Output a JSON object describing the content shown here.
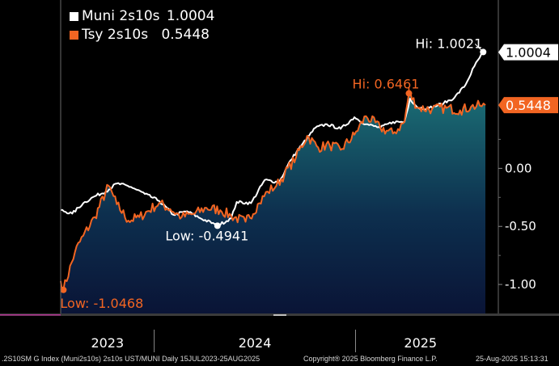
{
  "chart_data": {
    "type": "area",
    "legend": [
      {
        "name": "Muni 2s10s",
        "value": "1.0004",
        "color": "#ffffff"
      },
      {
        "name": "Tsy 2s10s",
        "value": "0.5448",
        "color": "#f26522"
      }
    ],
    "x_labels": [
      "2023",
      "2024",
      "2025"
    ],
    "y_ticks": [
      "0.00",
      "-0.50",
      "-1.00"
    ],
    "y_range": [
      -1.25,
      1.45
    ],
    "x_range": [
      "2023-07-15",
      "2025-08-25"
    ],
    "last_value_tags": [
      {
        "label": "1.0004",
        "series": "Muni 2s10s"
      },
      {
        "label": "0.5448",
        "series": "Tsy 2s10s"
      }
    ],
    "annotations": [
      {
        "text": "Hi: 1.0021",
        "date": "2025-08-21",
        "value": 1.0021,
        "series": "Muni 2s10s"
      },
      {
        "text": "Hi: 0.6461",
        "date": "2025-04-08",
        "value": 0.6461,
        "series": "Tsy 2s10s"
      },
      {
        "text": "Low: -0.4941",
        "date": "2024-04-25",
        "value": -0.4941,
        "series": "Muni 2s10s"
      },
      {
        "text": "Low: -1.0468",
        "date": "2023-07-20",
        "value": -1.0468,
        "series": "Tsy 2s10s"
      }
    ],
    "series": [
      {
        "name": "Muni 2s10s",
        "color": "#ffffff",
        "points": [
          [
            "2023-07-15",
            -0.36
          ],
          [
            "2023-08-05",
            -0.39
          ],
          [
            "2023-08-25",
            -0.3
          ],
          [
            "2023-09-15",
            -0.24
          ],
          [
            "2023-10-05",
            -0.2
          ],
          [
            "2023-10-25",
            -0.13
          ],
          [
            "2023-11-20",
            -0.16
          ],
          [
            "2023-12-15",
            -0.22
          ],
          [
            "2024-01-10",
            -0.28
          ],
          [
            "2024-02-05",
            -0.4
          ],
          [
            "2024-03-01",
            -0.37
          ],
          [
            "2024-03-25",
            -0.43
          ],
          [
            "2024-04-20",
            -0.48
          ],
          [
            "2024-04-25",
            -0.4941
          ],
          [
            "2024-05-20",
            -0.43
          ],
          [
            "2024-05-30",
            -0.29
          ],
          [
            "2024-06-25",
            -0.3
          ],
          [
            "2024-07-20",
            -0.1
          ],
          [
            "2024-08-15",
            -0.12
          ],
          [
            "2024-09-05",
            0.07
          ],
          [
            "2024-09-25",
            0.2
          ],
          [
            "2024-10-20",
            0.35
          ],
          [
            "2024-11-10",
            0.38
          ],
          [
            "2024-12-05",
            0.34
          ],
          [
            "2024-12-30",
            0.44
          ],
          [
            "2025-01-20",
            0.38
          ],
          [
            "2025-02-15",
            0.35
          ],
          [
            "2025-03-10",
            0.4
          ],
          [
            "2025-03-31",
            0.4
          ],
          [
            "2025-04-10",
            0.6
          ],
          [
            "2025-04-25",
            0.52
          ],
          [
            "2025-05-15",
            0.52
          ],
          [
            "2025-06-10",
            0.56
          ],
          [
            "2025-06-30",
            0.61
          ],
          [
            "2025-07-20",
            0.72
          ],
          [
            "2025-08-05",
            0.88
          ],
          [
            "2025-08-21",
            1.0021
          ],
          [
            "2025-08-25",
            1.0004
          ]
        ]
      },
      {
        "name": "Tsy 2s10s",
        "color": "#f26522",
        "points": [
          [
            "2023-07-15",
            -0.97
          ],
          [
            "2023-07-20",
            -1.0468
          ],
          [
            "2023-08-10",
            -0.72
          ],
          [
            "2023-08-25",
            -0.58
          ],
          [
            "2023-09-15",
            -0.42
          ],
          [
            "2023-10-10",
            -0.15
          ],
          [
            "2023-10-25",
            -0.31
          ],
          [
            "2023-11-15",
            -0.45
          ],
          [
            "2023-12-05",
            -0.42
          ],
          [
            "2024-01-10",
            -0.3
          ],
          [
            "2024-01-30",
            -0.35
          ],
          [
            "2024-02-20",
            -0.42
          ],
          [
            "2024-03-15",
            -0.39
          ],
          [
            "2024-04-05",
            -0.34
          ],
          [
            "2024-04-30",
            -0.36
          ],
          [
            "2024-05-20",
            -0.41
          ],
          [
            "2024-06-15",
            -0.46
          ],
          [
            "2024-07-10",
            -0.3
          ],
          [
            "2024-07-25",
            -0.2
          ],
          [
            "2024-08-10",
            -0.15
          ],
          [
            "2024-08-25",
            -0.05
          ],
          [
            "2024-09-15",
            0.1
          ],
          [
            "2024-10-05",
            0.28
          ],
          [
            "2024-10-25",
            0.18
          ],
          [
            "2024-11-15",
            0.2
          ],
          [
            "2024-12-05",
            0.16
          ],
          [
            "2024-12-30",
            0.29
          ],
          [
            "2025-01-20",
            0.45
          ],
          [
            "2025-02-15",
            0.35
          ],
          [
            "2025-03-10",
            0.3
          ],
          [
            "2025-03-31",
            0.4
          ],
          [
            "2025-04-08",
            0.6461
          ],
          [
            "2025-04-25",
            0.52
          ],
          [
            "2025-05-20",
            0.51
          ],
          [
            "2025-06-15",
            0.52
          ],
          [
            "2025-07-10",
            0.5
          ],
          [
            "2025-07-30",
            0.53
          ],
          [
            "2025-08-15",
            0.54
          ],
          [
            "2025-08-25",
            0.5448
          ]
        ]
      }
    ]
  },
  "footer": {
    "left": ".2S10SM G Index (Muni2s10s) 2s10s UST/MUNI  Daily 15JUL2023-25AUG2025",
    "copyright": "Copyright® 2025 Bloomberg Finance L.P.",
    "timestamp": "25-Aug-2025 15:13:31"
  }
}
